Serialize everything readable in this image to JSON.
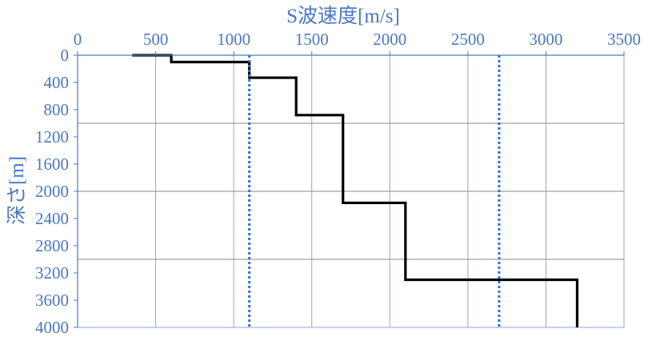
{
  "chart_data": {
    "type": "line",
    "title": "",
    "xlabel": "S波速度[m/s]",
    "ylabel": "深さ[m]",
    "x_axis_position": "top",
    "y_axis_inverted": true,
    "xlim": [
      0,
      3500
    ],
    "ylim": [
      0,
      4000
    ],
    "x_ticks": [
      0,
      500,
      1000,
      1500,
      2000,
      2500,
      3000,
      3500
    ],
    "y_ticks": [
      0,
      400,
      800,
      1200,
      1600,
      2000,
      2400,
      2800,
      3200,
      3600,
      4000
    ],
    "grid": {
      "vertical_at": [
        0,
        500,
        1000,
        1500,
        2000,
        2500,
        3000,
        3500
      ],
      "horizontal_at": [
        0,
        1000,
        2000,
        3000,
        4000
      ]
    },
    "series": [
      {
        "style": "solid",
        "color": "#000000",
        "points": [
          [
            350,
            0
          ],
          [
            600,
            0
          ],
          [
            600,
            100
          ],
          [
            1100,
            100
          ],
          [
            1100,
            330
          ],
          [
            1400,
            330
          ],
          [
            1400,
            880
          ],
          [
            1700,
            880
          ],
          [
            1700,
            2170
          ],
          [
            2100,
            2170
          ],
          [
            2100,
            3300
          ],
          [
            3200,
            3300
          ],
          [
            3200,
            4000
          ]
        ]
      },
      {
        "style": "dotted",
        "color": "#2f6fd6",
        "points": [
          [
            1100,
            0
          ],
          [
            1100,
            4000
          ]
        ]
      },
      {
        "style": "dotted",
        "color": "#2f6fd6",
        "points": [
          [
            2700,
            0
          ],
          [
            2700,
            4000
          ]
        ]
      }
    ],
    "colors": {
      "text": "#4a78c2",
      "vertical_grid": "#8fa6d6",
      "horizontal_grid": "#8a8a8a",
      "axis": "#4a78c2"
    }
  }
}
